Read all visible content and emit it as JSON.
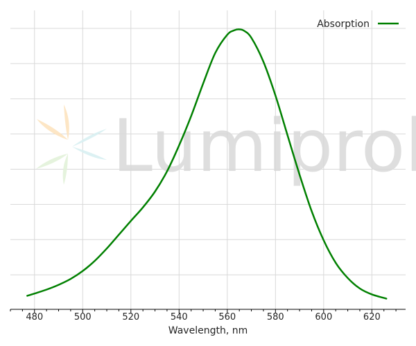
{
  "chart_data": {
    "type": "line",
    "xlabel": "Wavelength, nm",
    "ylabel": "",
    "xlim": [
      470,
      634
    ],
    "ylim": [
      0,
      1.0
    ],
    "xticks": [
      480,
      500,
      520,
      540,
      560,
      580,
      600,
      620
    ],
    "ygrid": [
      0.125,
      0.25,
      0.375,
      0.5,
      0.625,
      0.75,
      0.875,
      1.0
    ],
    "grid": true,
    "legend_position": "top-right",
    "series": [
      {
        "name": "Absorption",
        "color": "#008000",
        "x": [
          477,
          480,
          485,
          490,
          495,
          500,
          505,
          510,
          515,
          520,
          525,
          530,
          535,
          540,
          545,
          550,
          555,
          560,
          563,
          565,
          567,
          570,
          575,
          580,
          585,
          590,
          595,
          600,
          605,
          610,
          615,
          620,
          626
        ],
        "y": [
          0.048,
          0.056,
          0.07,
          0.087,
          0.108,
          0.136,
          0.172,
          0.216,
          0.265,
          0.314,
          0.362,
          0.418,
          0.49,
          0.582,
          0.686,
          0.802,
          0.91,
          0.975,
          0.991,
          0.994,
          0.989,
          0.964,
          0.879,
          0.759,
          0.618,
          0.478,
          0.349,
          0.245,
          0.165,
          0.111,
          0.074,
          0.053,
          0.038
        ]
      }
    ]
  },
  "watermark": {
    "text": "Lumiprobe",
    "petal_colors": [
      "#fde3bf",
      "#d8f0f2",
      "#e2f2d9"
    ]
  }
}
